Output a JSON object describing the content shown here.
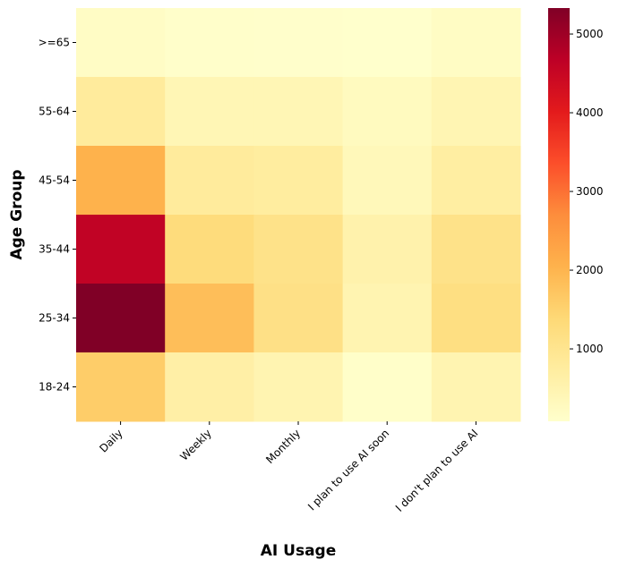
{
  "chart_data": {
    "type": "heatmap",
    "title": "",
    "xlabel": "AI Usage",
    "ylabel": "Age Group",
    "x_categories": [
      "Daily",
      "Weekly",
      "Monthly",
      "I plan to use AI soon",
      "I don't plan to use AI"
    ],
    "y_categories": [
      ">=65",
      "55-64",
      "45-54",
      "35-44",
      "25-34",
      "18-24"
    ],
    "values": [
      [
        180,
        110,
        100,
        80,
        200
      ],
      [
        800,
        420,
        420,
        280,
        450
      ],
      [
        2050,
        800,
        750,
        350,
        700
      ],
      [
        4600,
        1300,
        1100,
        550,
        1100
      ],
      [
        5330,
        1850,
        1150,
        480,
        1200
      ],
      [
        1600,
        650,
        480,
        120,
        480
      ]
    ],
    "colorbar": {
      "min": 80,
      "max": 5330,
      "ticks": [
        1000,
        2000,
        3000,
        4000,
        5000
      ],
      "colormap": "YlOrRd",
      "position": "right"
    }
  }
}
